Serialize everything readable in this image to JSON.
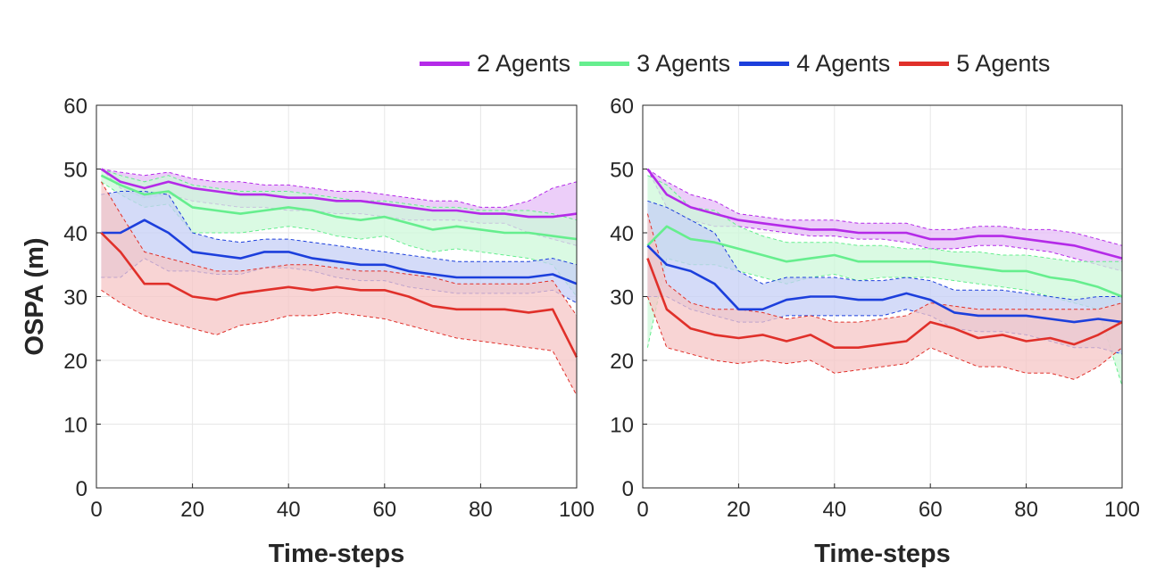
{
  "legend": [
    {
      "name": "2 Agents",
      "color": "#B42AE8",
      "fill": "#E5BDF7"
    },
    {
      "name": "3 Agents",
      "color": "#66EE8E",
      "fill": "#CDF8DA"
    },
    {
      "name": "4 Agents",
      "color": "#1C3FDC",
      "fill": "#C5CFF5"
    },
    {
      "name": "5 Agents",
      "color": "#E0302A",
      "fill": "#F6C6C5"
    }
  ],
  "chart_data": [
    {
      "type": "line",
      "xlabel": "Time-steps",
      "ylabel": "OSPA (m)",
      "xlim": [
        0,
        100
      ],
      "ylim": [
        0,
        60
      ],
      "xticks": [
        0,
        20,
        40,
        60,
        80,
        100
      ],
      "yticks": [
        0,
        10,
        20,
        30,
        40,
        50,
        60
      ],
      "grid": true,
      "x": [
        1,
        5,
        10,
        15,
        20,
        25,
        30,
        35,
        40,
        45,
        50,
        55,
        60,
        65,
        70,
        75,
        80,
        85,
        90,
        95,
        100
      ],
      "series": [
        {
          "name": "2 Agents",
          "mean": [
            50,
            48,
            47,
            48,
            47,
            46.5,
            46,
            46,
            45.5,
            45.5,
            45,
            45,
            44.5,
            44,
            43.5,
            43.5,
            43,
            43,
            42.5,
            42.5,
            43
          ],
          "upper": [
            50,
            49.5,
            49,
            49.5,
            48.5,
            48,
            48,
            47.5,
            47.5,
            47,
            46.5,
            46.5,
            46,
            45.5,
            45,
            45,
            44,
            44,
            45,
            47,
            48
          ],
          "lower": [
            50,
            47,
            45.5,
            46,
            45,
            44.5,
            44,
            44,
            43.5,
            43.5,
            43,
            43,
            42.5,
            42,
            42,
            42,
            41.5,
            41.5,
            40,
            39,
            38
          ]
        },
        {
          "name": "3 Agents",
          "mean": [
            49,
            47.5,
            46,
            46.5,
            44,
            43.5,
            43,
            43.5,
            44,
            43.5,
            42.5,
            42,
            42.5,
            41.5,
            40.5,
            41,
            40.5,
            40,
            40,
            39.5,
            39
          ],
          "upper": [
            50,
            49,
            48,
            49,
            47.5,
            47,
            46.5,
            46.5,
            46.5,
            46,
            45.5,
            45,
            45,
            44.5,
            44,
            44,
            43.5,
            43.5,
            43.5,
            43,
            42
          ],
          "lower": [
            48,
            46,
            44,
            44.5,
            40,
            40,
            40,
            40.5,
            41,
            40.5,
            39.5,
            39,
            39.5,
            38,
            37,
            37.5,
            37,
            36.5,
            36,
            35,
            30
          ]
        },
        {
          "name": "4 Agents",
          "mean": [
            40,
            40,
            42,
            40,
            37,
            36.5,
            36,
            37,
            37,
            36,
            35.5,
            35,
            35,
            34,
            33.5,
            33,
            33,
            33,
            33,
            33.5,
            32
          ],
          "upper": [
            46,
            46.5,
            46.5,
            46,
            40,
            39,
            38.5,
            39,
            39,
            38.5,
            38,
            37.5,
            37,
            36.5,
            36,
            35.5,
            35.5,
            35.5,
            35.5,
            36,
            35
          ],
          "lower": [
            33,
            33,
            36,
            34,
            34,
            33.5,
            33.5,
            34.5,
            34.5,
            34,
            33,
            32.5,
            32.5,
            31.5,
            31,
            30.5,
            30.5,
            30.5,
            30.5,
            31,
            29
          ]
        },
        {
          "name": "5 Agents",
          "mean": [
            40,
            37,
            32,
            32,
            30,
            29.5,
            30.5,
            31,
            31.5,
            31,
            31.5,
            31,
            31,
            30,
            28.5,
            28,
            28,
            28,
            27.5,
            28,
            20.5
          ],
          "upper": [
            48,
            43,
            37,
            36,
            35,
            34,
            34,
            34.5,
            35,
            35,
            34.5,
            34,
            34,
            33.5,
            33,
            32,
            32,
            32,
            32,
            32.5,
            27
          ],
          "lower": [
            31,
            29,
            27,
            26,
            25,
            24,
            25.5,
            26,
            27,
            27,
            27.5,
            27,
            26.5,
            25.5,
            24.5,
            23.5,
            23,
            22.5,
            22,
            21.5,
            14.5
          ]
        }
      ]
    },
    {
      "type": "line",
      "xlabel": "Time-steps",
      "ylabel": "",
      "xlim": [
        0,
        100
      ],
      "ylim": [
        0,
        60
      ],
      "xticks": [
        0,
        20,
        40,
        60,
        80,
        100
      ],
      "yticks": [
        0,
        10,
        20,
        30,
        40,
        50,
        60
      ],
      "grid": true,
      "x": [
        1,
        5,
        10,
        15,
        20,
        25,
        30,
        35,
        40,
        45,
        50,
        55,
        60,
        65,
        70,
        75,
        80,
        85,
        90,
        95,
        100
      ],
      "series": [
        {
          "name": "2 Agents",
          "mean": [
            50,
            46,
            44,
            43,
            42,
            41.5,
            41,
            40.5,
            40.5,
            40,
            40,
            40,
            39,
            39,
            39.5,
            39.5,
            39,
            38.5,
            38,
            37,
            36
          ],
          "upper": [
            50,
            48,
            46,
            45,
            43,
            42.5,
            42,
            42,
            42,
            41.5,
            41.5,
            41.5,
            40.5,
            40.5,
            41,
            41,
            40.5,
            40.5,
            40,
            39,
            38
          ],
          "lower": [
            50,
            44,
            42,
            41,
            41,
            40.5,
            40,
            39.5,
            39.5,
            39,
            39,
            38.5,
            37.5,
            37.5,
            38,
            38,
            37.5,
            37,
            36,
            35,
            34
          ]
        },
        {
          "name": "3 Agents",
          "mean": [
            38,
            41,
            39,
            38.5,
            37.5,
            36.5,
            35.5,
            36,
            36.5,
            35.5,
            35.5,
            35.5,
            35.5,
            35,
            34.5,
            34,
            34,
            33,
            32.5,
            31.5,
            30
          ],
          "upper": [
            49,
            47.5,
            44,
            43.5,
            41,
            39.5,
            38.5,
            38.5,
            38.5,
            38,
            38,
            37.5,
            37.5,
            37,
            37,
            36.5,
            36.5,
            36,
            35.5,
            35.5,
            35.5
          ],
          "lower": [
            22,
            36,
            35,
            35,
            34,
            33,
            32,
            33,
            33.5,
            32.5,
            33,
            33,
            33,
            32.5,
            32,
            31.5,
            31,
            30,
            29,
            28,
            16
          ]
        },
        {
          "name": "4 Agents",
          "mean": [
            38,
            35,
            34,
            32,
            28,
            28,
            29.5,
            30,
            30,
            29.5,
            29.5,
            30.5,
            29.5,
            27.5,
            27,
            27,
            27,
            26.5,
            26,
            26.5,
            26
          ],
          "upper": [
            45,
            44,
            42,
            40,
            34,
            32,
            33,
            33,
            33,
            32.5,
            32.5,
            33,
            32.5,
            31,
            31,
            31,
            30.5,
            30,
            29.5,
            30,
            30
          ],
          "lower": [
            30,
            30,
            28,
            27,
            26,
            26,
            27,
            27,
            27,
            27,
            27,
            28,
            27,
            25,
            24.5,
            24.5,
            24,
            23,
            22,
            22,
            21
          ]
        },
        {
          "name": "5 Agents",
          "mean": [
            36,
            28,
            25,
            24,
            23.5,
            24,
            23,
            24,
            22,
            22,
            22.5,
            23,
            26,
            25,
            23.5,
            24,
            23,
            23.5,
            22.5,
            24,
            26
          ],
          "upper": [
            43,
            32,
            29,
            28,
            28,
            27.5,
            26.5,
            27,
            26,
            26,
            26.5,
            27,
            29,
            28.5,
            28,
            28,
            28,
            28,
            28,
            28,
            29
          ],
          "lower": [
            30,
            22,
            21,
            20,
            19.5,
            20,
            19.5,
            20,
            18,
            18.5,
            19,
            19.5,
            22,
            20.5,
            19,
            19,
            18,
            18,
            17,
            19,
            22
          ]
        }
      ]
    }
  ]
}
